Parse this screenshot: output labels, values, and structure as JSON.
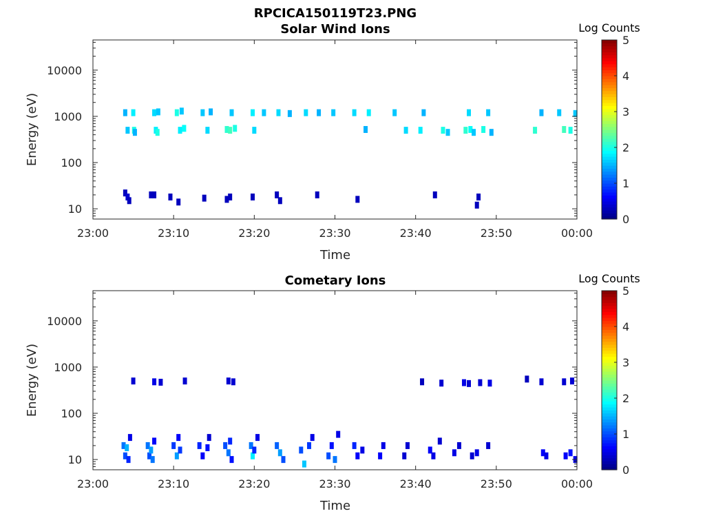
{
  "figure_title": "RPCICA150119T23.PNG",
  "chart_data": [
    {
      "type": "heatmap",
      "title": "Solar Wind Ions",
      "xlabel": "Time",
      "ylabel": "Energy (eV)",
      "x_ticks": [
        "23:00",
        "23:10",
        "23:20",
        "23:30",
        "23:40",
        "23:50",
        "00:00"
      ],
      "y_ticks": [
        "10",
        "100",
        "1000",
        "10000"
      ],
      "y_scale": "log",
      "ylim": [
        6,
        45000
      ],
      "xlim_minutes": [
        0,
        60
      ],
      "colorbar": {
        "label": "Log Counts",
        "ticks": [
          "0",
          "1",
          "2",
          "3",
          "4",
          "5"
        ],
        "range": [
          0,
          5
        ]
      },
      "cells": [
        [
          4.0,
          1200,
          1.5
        ],
        [
          4.3,
          500,
          1.6
        ],
        [
          5.0,
          1200,
          1.8
        ],
        [
          5.1,
          500,
          2.0
        ],
        [
          5.2,
          450,
          1.5
        ],
        [
          7.6,
          1200,
          1.7
        ],
        [
          7.8,
          500,
          1.8
        ],
        [
          8.0,
          450,
          2.0
        ],
        [
          8.1,
          1250,
          1.6
        ],
        [
          10.4,
          1200,
          2.0
        ],
        [
          10.8,
          500,
          1.8
        ],
        [
          11.0,
          1300,
          1.6
        ],
        [
          11.3,
          550,
          1.9
        ],
        [
          13.6,
          1200,
          1.6
        ],
        [
          14.2,
          500,
          1.7
        ],
        [
          14.6,
          1250,
          1.5
        ],
        [
          16.6,
          520,
          2.1
        ],
        [
          17.0,
          500,
          2.2
        ],
        [
          17.2,
          1200,
          1.6
        ],
        [
          17.6,
          550,
          2.0
        ],
        [
          19.8,
          1200,
          1.8
        ],
        [
          20.0,
          500,
          1.7
        ],
        [
          21.2,
          1200,
          1.6
        ],
        [
          23.0,
          1200,
          1.7
        ],
        [
          24.4,
          1150,
          1.5
        ],
        [
          26.4,
          1200,
          1.7
        ],
        [
          28.0,
          1200,
          1.5
        ],
        [
          29.8,
          1200,
          1.6
        ],
        [
          32.4,
          1200,
          1.7
        ],
        [
          33.8,
          520,
          1.5
        ],
        [
          34.2,
          1200,
          1.8
        ],
        [
          37.4,
          1200,
          1.6
        ],
        [
          38.8,
          500,
          1.7
        ],
        [
          40.6,
          500,
          1.8
        ],
        [
          41.0,
          1200,
          1.5
        ],
        [
          43.4,
          500,
          2.0
        ],
        [
          44.0,
          450,
          1.6
        ],
        [
          46.2,
          500,
          2.1
        ],
        [
          46.6,
          1200,
          1.7
        ],
        [
          46.8,
          520,
          1.9
        ],
        [
          47.2,
          450,
          1.6
        ],
        [
          48.4,
          520,
          2.0
        ],
        [
          49.0,
          1200,
          1.6
        ],
        [
          49.4,
          450,
          1.5
        ],
        [
          54.8,
          500,
          2.1
        ],
        [
          55.6,
          1200,
          1.5
        ],
        [
          57.8,
          1200,
          1.6
        ],
        [
          58.4,
          520,
          2.2
        ],
        [
          59.2,
          500,
          2.0
        ],
        [
          59.8,
          1150,
          1.6
        ],
        [
          4.0,
          22,
          0.3
        ],
        [
          4.3,
          18,
          0.4
        ],
        [
          4.5,
          15,
          0.3
        ],
        [
          7.2,
          20,
          0.3
        ],
        [
          7.6,
          20,
          0.3
        ],
        [
          9.6,
          18,
          0.3
        ],
        [
          10.6,
          14,
          0.3
        ],
        [
          13.8,
          17,
          0.3
        ],
        [
          16.6,
          16,
          0.3
        ],
        [
          17.0,
          18,
          0.3
        ],
        [
          19.8,
          18,
          0.3
        ],
        [
          22.8,
          20,
          0.3
        ],
        [
          23.2,
          15,
          0.3
        ],
        [
          27.8,
          20,
          0.3
        ],
        [
          32.8,
          16,
          0.3
        ],
        [
          42.4,
          20,
          0.3
        ],
        [
          47.8,
          18,
          0.3
        ],
        [
          47.6,
          12,
          0.3
        ]
      ]
    },
    {
      "type": "heatmap",
      "title": "Cometary Ions",
      "xlabel": "Time",
      "ylabel": "Energy (eV)",
      "x_ticks": [
        "23:00",
        "23:10",
        "23:20",
        "23:30",
        "23:40",
        "23:50",
        "00:00"
      ],
      "y_ticks": [
        "10",
        "100",
        "1000",
        "10000"
      ],
      "y_scale": "log",
      "ylim": [
        6,
        45000
      ],
      "xlim_minutes": [
        0,
        60
      ],
      "colorbar": {
        "label": "Log Counts",
        "ticks": [
          "0",
          "1",
          "2",
          "3",
          "4",
          "5"
        ],
        "range": [
          0,
          5
        ]
      },
      "cells": [
        [
          3.8,
          20,
          1.2
        ],
        [
          4.0,
          12,
          1.0
        ],
        [
          4.2,
          18,
          1.5
        ],
        [
          4.4,
          10,
          0.8
        ],
        [
          4.6,
          30,
          0.5
        ],
        [
          6.8,
          20,
          1.2
        ],
        [
          7.0,
          12,
          1.0
        ],
        [
          7.2,
          16,
          1.4
        ],
        [
          7.4,
          10,
          1.2
        ],
        [
          7.6,
          25,
          0.6
        ],
        [
          10.0,
          20,
          0.9
        ],
        [
          10.4,
          12,
          1.4
        ],
        [
          10.6,
          30,
          0.6
        ],
        [
          10.8,
          16,
          0.9
        ],
        [
          13.2,
          20,
          0.8
        ],
        [
          13.6,
          12,
          0.6
        ],
        [
          14.2,
          18,
          0.7
        ],
        [
          14.4,
          30,
          0.4
        ],
        [
          16.4,
          20,
          1.0
        ],
        [
          16.8,
          14,
          1.2
        ],
        [
          17.0,
          25,
          0.8
        ],
        [
          17.2,
          10,
          0.7
        ],
        [
          19.6,
          20,
          1.2
        ],
        [
          19.8,
          12,
          1.8
        ],
        [
          20.0,
          16,
          0.8
        ],
        [
          20.4,
          30,
          0.5
        ],
        [
          22.8,
          20,
          1.1
        ],
        [
          23.2,
          14,
          1.4
        ],
        [
          23.6,
          10,
          1.0
        ],
        [
          25.8,
          16,
          1.0
        ],
        [
          26.2,
          8,
          1.6
        ],
        [
          26.8,
          20,
          0.9
        ],
        [
          27.2,
          30,
          0.5
        ],
        [
          29.2,
          12,
          1.0
        ],
        [
          29.6,
          20,
          0.7
        ],
        [
          30.0,
          10,
          1.2
        ],
        [
          30.4,
          35,
          0.5
        ],
        [
          32.4,
          20,
          0.8
        ],
        [
          32.8,
          12,
          0.6
        ],
        [
          33.4,
          16,
          0.5
        ],
        [
          35.6,
          12,
          0.6
        ],
        [
          36.0,
          20,
          0.5
        ],
        [
          38.6,
          12,
          0.4
        ],
        [
          39.0,
          20,
          0.4
        ],
        [
          41.8,
          16,
          0.6
        ],
        [
          42.2,
          12,
          0.5
        ],
        [
          43.0,
          25,
          0.4
        ],
        [
          44.8,
          14,
          0.5
        ],
        [
          45.4,
          20,
          0.4
        ],
        [
          47.0,
          12,
          0.4
        ],
        [
          47.6,
          14,
          0.5
        ],
        [
          49.0,
          20,
          0.4
        ],
        [
          55.8,
          14,
          0.6
        ],
        [
          56.2,
          12,
          0.5
        ],
        [
          58.6,
          12,
          0.6
        ],
        [
          59.2,
          14,
          0.7
        ],
        [
          59.8,
          10,
          0.5
        ],
        [
          5.0,
          500,
          0.4
        ],
        [
          7.6,
          480,
          0.5
        ],
        [
          8.4,
          470,
          0.4
        ],
        [
          11.4,
          500,
          0.4
        ],
        [
          16.8,
          500,
          0.4
        ],
        [
          17.4,
          480,
          0.4
        ],
        [
          40.8,
          480,
          0.3
        ],
        [
          43.2,
          450,
          0.4
        ],
        [
          46.0,
          460,
          0.5
        ],
        [
          46.6,
          440,
          0.4
        ],
        [
          48.0,
          460,
          0.4
        ],
        [
          49.2,
          450,
          0.5
        ],
        [
          53.8,
          550,
          0.3
        ],
        [
          55.6,
          480,
          0.4
        ],
        [
          58.4,
          480,
          0.4
        ],
        [
          59.4,
          500,
          0.4
        ]
      ]
    }
  ]
}
